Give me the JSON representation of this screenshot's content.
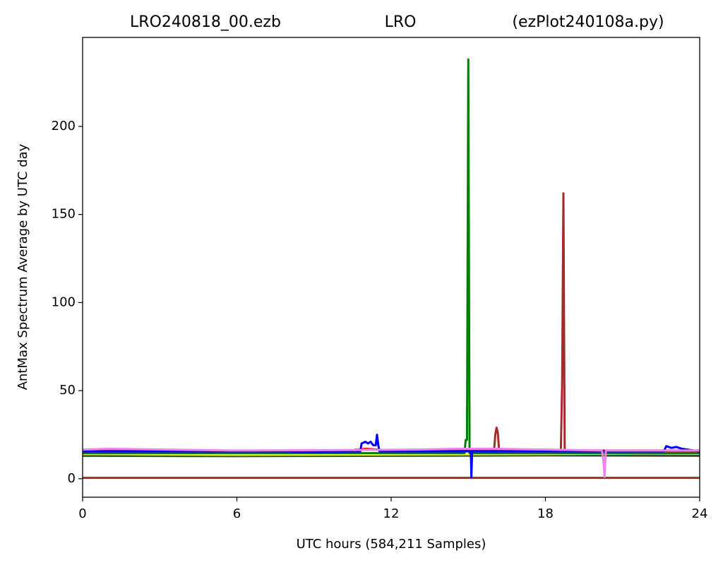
{
  "chart_data": {
    "type": "line",
    "title_left": "LRO240818_00.ezb",
    "title_center": "LRO",
    "title_right": "(ezPlot240108a.py)",
    "xlabel": "UTC hours  (584,211 Samples)",
    "ylabel": "AntMax Spectrum Average by UTC day",
    "xlim": [
      0,
      24
    ],
    "ylim": [
      -10.5,
      250.5
    ],
    "xticks": [
      0,
      6,
      12,
      18,
      24
    ],
    "yticks": [
      0,
      50,
      100,
      150,
      200
    ],
    "series": [
      {
        "color": "#a52a2a",
        "x": [
          0,
          24
        ],
        "values": [
          0.5,
          0.5
        ]
      },
      {
        "color": "#2f4f2f",
        "x": [
          0,
          6,
          12,
          18,
          24
        ],
        "values": [
          13,
          12.8,
          13,
          13.2,
          13
        ]
      },
      {
        "color": "#ffff00",
        "x": [
          0,
          6,
          12,
          18,
          24
        ],
        "values": [
          14,
          13.6,
          13.8,
          14,
          14.5
        ]
      },
      {
        "color": "#ff0000",
        "x": [
          0,
          6,
          10.5,
          11,
          12,
          18,
          24
        ],
        "values": [
          16,
          15.8,
          16,
          17,
          16,
          16,
          16
        ]
      },
      {
        "color": "#008000",
        "x": [
          0,
          14.85,
          14.9,
          14.95,
          15.0,
          15.05,
          24
        ],
        "values": [
          14.5,
          14.5,
          22,
          22,
          238,
          14.5,
          14.5
        ]
      },
      {
        "color": "#a52a2a",
        "x": [
          0,
          10.4,
          10.6,
          16.0,
          16.05,
          16.1,
          16.15,
          16.2,
          18.6,
          18.65,
          18.7,
          18.75,
          24
        ],
        "values": [
          15.5,
          15.5,
          16.5,
          15.5,
          25,
          29,
          26,
          15.5,
          15.5,
          55,
          162,
          15.5,
          15.5
        ]
      },
      {
        "color": "#0000ff",
        "x": [
          0,
          8,
          8.3,
          10.8,
          10.85,
          11.0,
          11.1,
          11.2,
          11.3,
          11.4,
          11.45,
          11.5,
          11.55,
          15.1,
          15.12,
          15.15,
          22.6,
          22.7,
          22.9,
          23.1,
          23.3,
          24
        ],
        "values": [
          15.5,
          15.5,
          15.2,
          15.5,
          20,
          21,
          20,
          21,
          19,
          19,
          25,
          19,
          15.5,
          15.5,
          1,
          15.5,
          15.5,
          18.5,
          17.5,
          18,
          17,
          15.5
        ]
      },
      {
        "color": "#ee82ee",
        "x": [
          0,
          1,
          5.8,
          6.5,
          13,
          14.5,
          16,
          20.2,
          20.25,
          20.3,
          20.35,
          24
        ],
        "values": [
          16.5,
          17,
          16,
          16,
          16.5,
          17,
          17,
          16,
          11,
          1,
          16,
          16
        ]
      }
    ]
  }
}
